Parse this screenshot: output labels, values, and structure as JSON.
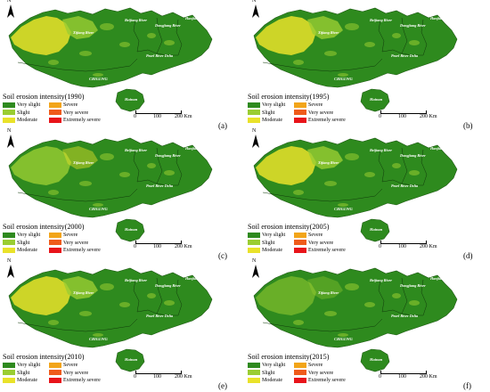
{
  "legend": {
    "items": [
      {
        "label": "Very slight",
        "color": "#2e8a1e"
      },
      {
        "label": "Slight",
        "color": "#9acd32"
      },
      {
        "label": "Moderate",
        "color": "#e9e22a"
      },
      {
        "label": "Severe",
        "color": "#f2a51a"
      },
      {
        "label": "Very severe",
        "color": "#ef5b1b"
      },
      {
        "label": "Extremely severe",
        "color": "#e8141a"
      }
    ]
  },
  "scale": {
    "ticks": [
      "0",
      "100",
      "200 Km"
    ]
  },
  "north_label": "N",
  "map_labels": {
    "xijiang": "Xijiang River",
    "beijiang": "Beijiang River",
    "dongjiang": "Dongjiang River",
    "hanjiang": "Hanjiang River",
    "pearl": "Pearl River Delta",
    "cridgwg": "CRIGLWG",
    "hainan": "Hainan"
  },
  "panels": [
    {
      "title": "Soil erosion intensity(1990)",
      "label": "(a)",
      "year": 1990,
      "west_erosion": "high"
    },
    {
      "title": "Soil erosion intensity(1995)",
      "label": "(b)",
      "year": 1995,
      "west_erosion": "high"
    },
    {
      "title": "Soil erosion intensity(2000)",
      "label": "(c)",
      "year": 2000,
      "west_erosion": "medium"
    },
    {
      "title": "Soil erosion intensity(2005)",
      "label": "(d)",
      "year": 2005,
      "west_erosion": "high"
    },
    {
      "title": "Soil erosion intensity(2010)",
      "label": "(e)",
      "year": 2010,
      "west_erosion": "high"
    },
    {
      "title": "Soil erosion intensity(2015)",
      "label": "(f)",
      "year": 2015,
      "west_erosion": "low"
    }
  ]
}
